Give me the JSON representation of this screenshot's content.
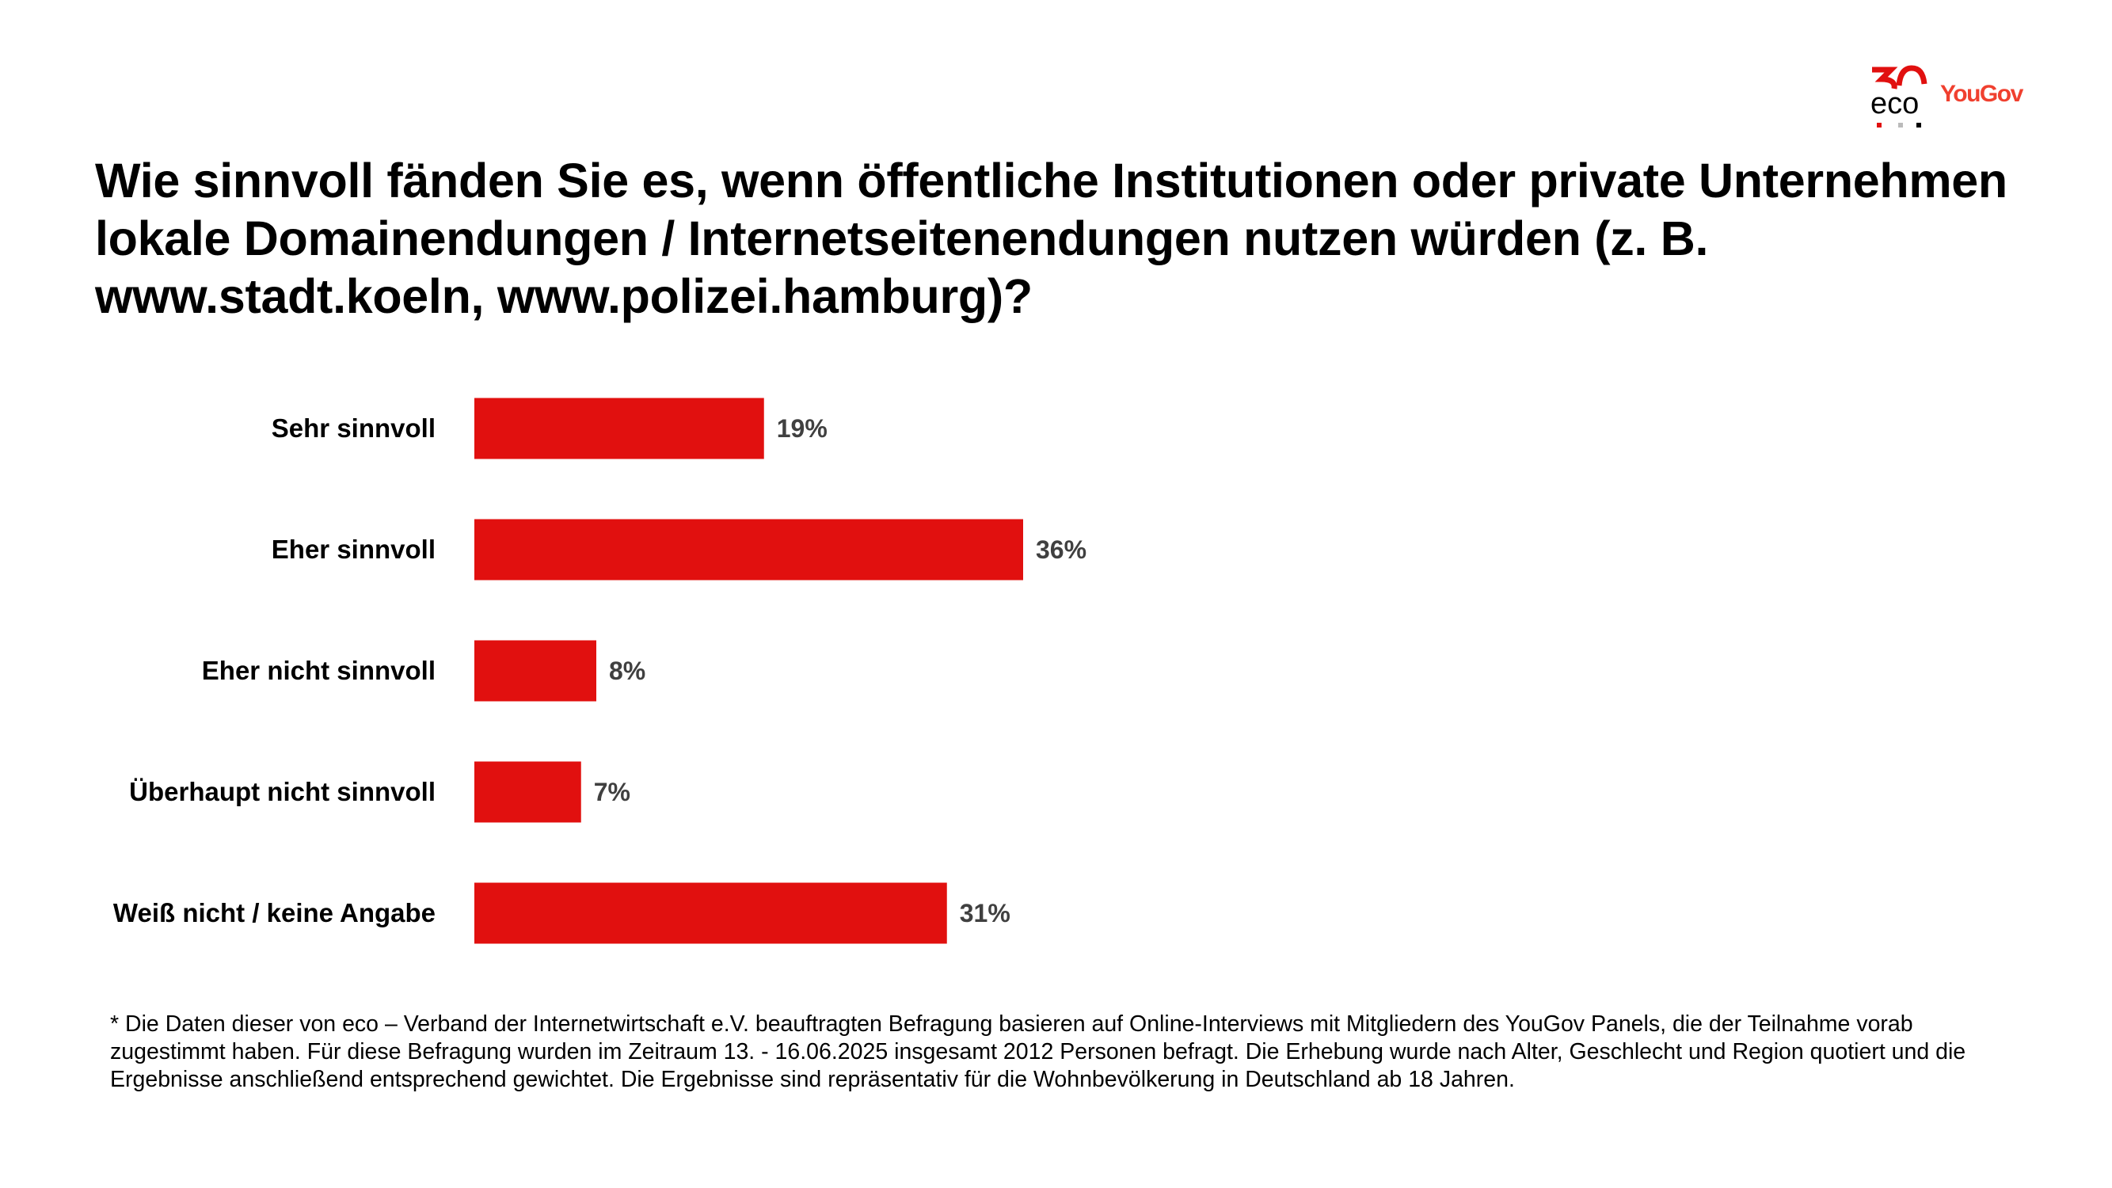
{
  "logos": {
    "eco": "eco",
    "eco_badge": "30",
    "yougov": "YouGov"
  },
  "title": "Wie sinnvoll fänden Sie es, wenn öffentliche Institutionen oder private Unternehmen lokale Domainendungen / Internetseitenendungen nutzen würden (z. B. www.stadt.koeln, www.polizei.hamburg)?",
  "chart_data": {
    "type": "bar",
    "orientation": "horizontal",
    "categories": [
      "Sehr sinnvoll",
      "Eher sinnvoll",
      "Eher nicht sinnvoll",
      "Überhaupt nicht sinnvoll",
      "Weiß nicht / keine Angabe"
    ],
    "values": [
      19,
      36,
      8,
      7,
      31
    ],
    "value_labels": [
      "19%",
      "36%",
      "8%",
      "7%",
      "31%"
    ],
    "unit": "%",
    "xlim": [
      0,
      100
    ],
    "grid": false,
    "bar_color": "#e1100f"
  },
  "footnote": "* Die Daten dieser von eco – Verband der Internetwirtschaft e.V. beauftragten Befragung basieren auf Online-Interviews mit Mitgliedern des YouGov Panels, die der Teilnahme vorab zugestimmt haben. Für diese Befragung wurden im Zeitraum 13. - 16.06.2025 insgesamt 2012 Personen befragt. Die Erhebung wurde nach Alter, Geschlecht und Region quotiert und die Ergebnisse anschließend entsprechend gewichtet. Die Ergebnisse sind repräsentativ für die Wohnbevölkerung in Deutschland ab 18 Jahren."
}
